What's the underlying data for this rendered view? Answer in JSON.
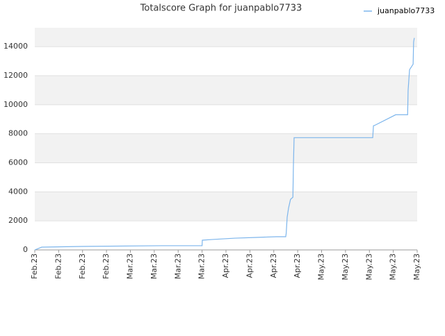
{
  "chart_data": {
    "type": "line",
    "title": "Totalscore Graph for juanpablo7733",
    "x": [
      0,
      0.15,
      0.23,
      0.29,
      1.95,
      5.3,
      7.0,
      7.01,
      7.45,
      8.38,
      9.28,
      10.1,
      10.5,
      10.52,
      10.56,
      10.62,
      10.7,
      10.8,
      10.82,
      10.85,
      14.14,
      14.17,
      14.25,
      15.1,
      15.6,
      15.62,
      15.68,
      15.83,
      15.85,
      15.88
    ],
    "series": [
      {
        "name": "juanpablo7733",
        "color": "#7cb5ec",
        "values": [
          0,
          100,
          150,
          190,
          240,
          290,
          290,
          670,
          720,
          810,
          860,
          910,
          910,
          1150,
          2250,
          2900,
          3480,
          3630,
          5730,
          7730,
          7730,
          8550,
          8600,
          9310,
          9310,
          10980,
          12410,
          12790,
          14320,
          14600
        ]
      }
    ],
    "xlim": [
      0,
      16
    ],
    "xticks": [
      {
        "value": 0,
        "label": "Feb.23"
      },
      {
        "value": 1,
        "label": "Feb.23"
      },
      {
        "value": 2,
        "label": "Feb.23"
      },
      {
        "value": 3,
        "label": "Feb.23"
      },
      {
        "value": 4,
        "label": "Mar.23"
      },
      {
        "value": 5,
        "label": "Mar.23"
      },
      {
        "value": 6,
        "label": "Mar.23"
      },
      {
        "value": 7,
        "label": "Mar.23"
      },
      {
        "value": 8,
        "label": "Apr.23"
      },
      {
        "value": 9,
        "label": "Apr.23"
      },
      {
        "value": 10,
        "label": "Apr.23"
      },
      {
        "value": 11,
        "label": "Apr.23"
      },
      {
        "value": 12,
        "label": "May.23"
      },
      {
        "value": 13,
        "label": "May.23"
      },
      {
        "value": 14,
        "label": "May.23"
      },
      {
        "value": 15,
        "label": "May.23"
      },
      {
        "value": 16,
        "label": "May.23"
      }
    ],
    "ylim": [
      0,
      15300
    ],
    "yticks": [
      0,
      2000,
      4000,
      6000,
      8000,
      10000,
      12000,
      14000
    ],
    "grid": true,
    "legend": "top-right"
  }
}
